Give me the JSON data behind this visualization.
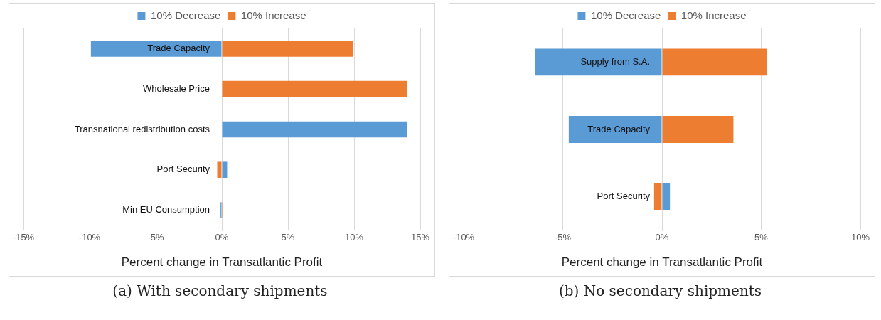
{
  "chart_data": [
    {
      "type": "bar",
      "orientation": "horizontal",
      "title": "(a) With secondary shipments",
      "xlabel": "Percent change in Transatlantic Profit",
      "categories": [
        "Trade Capacity",
        "Wholesale Price",
        "Transnational redistribution costs",
        "Port Security",
        "Min EU Consumption"
      ],
      "series": [
        {
          "name": "10% Decrease",
          "color": "#5b9bd5",
          "values": [
            -9.9,
            0,
            14.0,
            0.4,
            -0.1
          ]
        },
        {
          "name": "10% Increase",
          "color": "#ed7d31",
          "values": [
            9.9,
            14.0,
            0,
            -0.35,
            0.1
          ]
        }
      ],
      "xlim": [
        -15,
        15
      ],
      "xticks": [
        {
          "value": -15,
          "label": "-15%"
        },
        {
          "value": -10,
          "label": "-10%"
        },
        {
          "value": -5,
          "label": "-5%"
        },
        {
          "value": 0,
          "label": "0%"
        },
        {
          "value": 5,
          "label": "5%"
        },
        {
          "value": 10,
          "label": "10%"
        },
        {
          "value": 15,
          "label": "15%"
        }
      ],
      "grid": "x",
      "legend": "top",
      "stacked": true
    },
    {
      "type": "bar",
      "orientation": "horizontal",
      "title": "(b) No secondary shipments",
      "xlabel": "Percent change in Transatlantic Profit",
      "categories": [
        "Supply from S.A.",
        "Trade Capacity",
        "Port Security"
      ],
      "series": [
        {
          "name": "10% Decrease",
          "color": "#5b9bd5",
          "values": [
            -6.4,
            -4.7,
            0.4
          ]
        },
        {
          "name": "10% Increase",
          "color": "#ed7d31",
          "values": [
            5.3,
            3.6,
            -0.4
          ]
        }
      ],
      "xlim": [
        -10,
        10
      ],
      "xticks": [
        {
          "value": -10,
          "label": "-10%"
        },
        {
          "value": -5,
          "label": "-5%"
        },
        {
          "value": 0,
          "label": "0%"
        },
        {
          "value": 5,
          "label": "5%"
        },
        {
          "value": 10,
          "label": "10%"
        }
      ],
      "grid": "x",
      "legend": "top",
      "stacked": true
    }
  ]
}
